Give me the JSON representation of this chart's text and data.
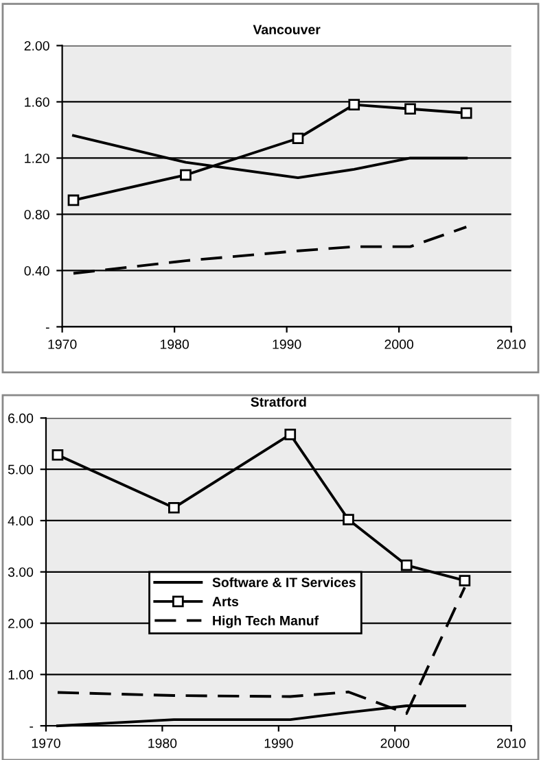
{
  "chart_data": [
    {
      "type": "line",
      "title": "Vancouver",
      "x": [
        1971,
        1981,
        1991,
        1996,
        2001,
        2006
      ],
      "xlim": [
        1970,
        2010
      ],
      "xticks": [
        1970,
        1980,
        1990,
        2000,
        2010
      ],
      "ylim": [
        0,
        2
      ],
      "yticks": [
        {
          "value": 0,
          "label": "-"
        },
        {
          "value": 0.4,
          "label": "0.40"
        },
        {
          "value": 0.8,
          "label": "0.80"
        },
        {
          "value": 1.2,
          "label": "1.20"
        },
        {
          "value": 1.6,
          "label": "1.60"
        },
        {
          "value": 2.0,
          "label": "2.00"
        }
      ],
      "grid": "y",
      "legend": false,
      "series": [
        {
          "color": "#000000",
          "line_style": "solid",
          "marker": "none",
          "values": [
            1.36,
            1.17,
            1.06,
            1.12,
            1.2,
            1.2
          ]
        },
        {
          "color": "#000000",
          "line_style": "solid",
          "marker": "square",
          "values": [
            0.9,
            1.08,
            1.34,
            1.58,
            1.55,
            1.52
          ]
        },
        {
          "color": "#000000",
          "line_style": "dashed",
          "marker": "none",
          "values": [
            0.38,
            0.47,
            0.54,
            0.57,
            0.57,
            0.71
          ]
        }
      ]
    },
    {
      "type": "line",
      "title": "Stratford",
      "x": [
        1971,
        1981,
        1991,
        1996,
        2001,
        2006
      ],
      "xlim": [
        1970,
        2010
      ],
      "xticks": [
        1970,
        1980,
        1990,
        2000,
        2010
      ],
      "ylim": [
        0,
        6
      ],
      "yticks": [
        {
          "value": 0,
          "label": "-"
        },
        {
          "value": 1,
          "label": "1.00"
        },
        {
          "value": 2,
          "label": "2.00"
        },
        {
          "value": 3,
          "label": "3.00"
        },
        {
          "value": 4,
          "label": "4.00"
        },
        {
          "value": 5,
          "label": "5.00"
        },
        {
          "value": 6,
          "label": "6.00"
        }
      ],
      "grid": "y",
      "legend": "center",
      "series": [
        {
          "name": "Software & IT Services",
          "color": "#000000",
          "line_style": "solid",
          "marker": "none",
          "values": [
            0.0,
            0.12,
            0.12,
            0.26,
            0.39,
            0.39
          ]
        },
        {
          "name": "Arts",
          "color": "#000000",
          "line_style": "solid",
          "marker": "square",
          "values": [
            5.28,
            4.25,
            5.68,
            4.02,
            3.13,
            2.83
          ]
        },
        {
          "name": "High Tech Manuf",
          "color": "#000000",
          "line_style": "dashed",
          "marker": "none",
          "values": [
            0.65,
            0.59,
            0.57,
            0.66,
            0.24,
            2.7
          ]
        }
      ]
    }
  ]
}
